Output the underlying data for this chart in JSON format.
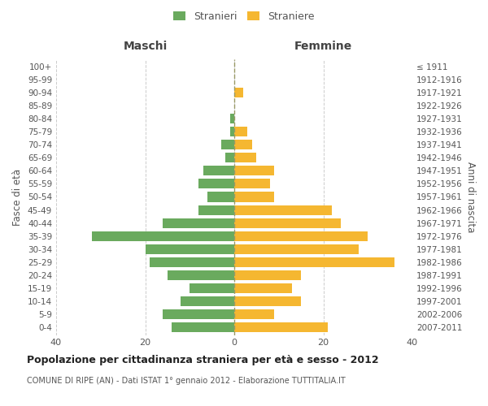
{
  "age_groups": [
    "0-4",
    "5-9",
    "10-14",
    "15-19",
    "20-24",
    "25-29",
    "30-34",
    "35-39",
    "40-44",
    "45-49",
    "50-54",
    "55-59",
    "60-64",
    "65-69",
    "70-74",
    "75-79",
    "80-84",
    "85-89",
    "90-94",
    "95-99",
    "100+"
  ],
  "birth_years": [
    "2007-2011",
    "2002-2006",
    "1997-2001",
    "1992-1996",
    "1987-1991",
    "1982-1986",
    "1977-1981",
    "1972-1976",
    "1967-1971",
    "1962-1966",
    "1957-1961",
    "1952-1956",
    "1947-1951",
    "1942-1946",
    "1937-1941",
    "1932-1936",
    "1927-1931",
    "1922-1926",
    "1917-1921",
    "1912-1916",
    "≤ 1911"
  ],
  "maschi": [
    14,
    16,
    12,
    10,
    15,
    19,
    20,
    32,
    16,
    8,
    6,
    8,
    7,
    2,
    3,
    1,
    1,
    0,
    0,
    0,
    0
  ],
  "femmine": [
    21,
    9,
    15,
    13,
    15,
    36,
    28,
    30,
    24,
    22,
    9,
    8,
    9,
    5,
    4,
    3,
    0,
    0,
    2,
    0,
    0
  ],
  "maschi_color": "#6aaa5e",
  "femmine_color": "#f5b731",
  "background_color": "#ffffff",
  "grid_color": "#cccccc",
  "title": "Popolazione per cittadinanza straniera per età e sesso - 2012",
  "subtitle": "COMUNE DI RIPE (AN) - Dati ISTAT 1° gennaio 2012 - Elaborazione TUTTITALIA.IT",
  "ylabel_left": "Fasce di età",
  "ylabel_right": "Anni di nascita",
  "xlabel_left": "Maschi",
  "xlabel_right": "Femmine",
  "legend_maschi": "Stranieri",
  "legend_femmine": "Straniere",
  "xlim": 40,
  "bar_height": 0.75
}
